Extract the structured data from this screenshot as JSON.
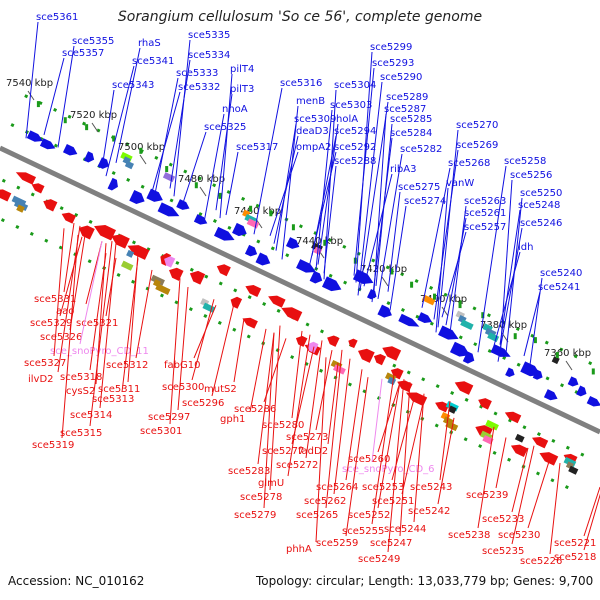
{
  "header": {
    "title": "Sorangium cellulosum 'So ce 56', complete genome"
  },
  "footer": {
    "accession": "Accession: NC_010162",
    "summary": "Topology: circular; Length: 13,033,779 bp; Genes: 9,700"
  },
  "colors": {
    "forward": "#1010e0",
    "reverse": "#e81010",
    "rna": "#ee88ee",
    "axis": "#808080",
    "dots": "#1a9a1a"
  },
  "ticks": [
    "7540 kbp",
    "7520 kbp",
    "7500 kbp",
    "7480 kbp",
    "7460 kbp",
    "7440 kbp",
    "7420 kbp",
    "7400 kbp",
    "7380 kbp",
    "7360 kbp"
  ],
  "top_labels": [
    "sce5361",
    "sce5355",
    "sce5357",
    "rhaS",
    "sce5341",
    "sce5343",
    "sce5335",
    "sce5334",
    "sce5333",
    "sce5332",
    "pilT4",
    "pilT3",
    "nhoA",
    "sce5325",
    "sce5316",
    "sce5317",
    "menB",
    "sce5309",
    "deaD3",
    "ompA2",
    "sce5304",
    "sce5303",
    "holA",
    "sce5294",
    "sce5292",
    "sce5288",
    "sce5299",
    "sce5293",
    "sce5290",
    "sce5289",
    "sce5287",
    "sce5285",
    "sce5284",
    "sce5282",
    "ribA3",
    "sce5275",
    "sce5274",
    "sce5270",
    "sce5269",
    "sce5268",
    "vanW",
    "sce5263",
    "sce5261",
    "sce5257",
    "sce5258",
    "sce5256",
    "sce5250",
    "sce5248",
    "sce5246",
    "ldh",
    "sce5240",
    "sce5241"
  ],
  "bottom_labels": [
    "sce5331",
    "aao",
    "sce5329",
    "sce5321",
    "sce5326",
    "sce_snoPyro_CD_11",
    "sce5327",
    "sce5318",
    "ilvD2",
    "cysS2",
    "sce5312",
    "fabG10",
    "sce5311",
    "sce5313",
    "sce5300",
    "mutS2",
    "sce5314",
    "sce5296",
    "sce5297",
    "gph1",
    "sce5315",
    "sce5301",
    "sce5319",
    "sce5286",
    "sce5280",
    "sce5273",
    "sce5277",
    "fadD2",
    "sce5272",
    "sce5260",
    "sce_snoPyro_CD_6",
    "sce5283",
    "glmU",
    "sce5278",
    "sce5264",
    "sce5253",
    "sce5243",
    "sce5262",
    "sce5251",
    "sce5279",
    "sce5265",
    "sce5252",
    "sce5239",
    "sce5242",
    "sce5255",
    "sce5244",
    "sce5233",
    "sce5259",
    "sce5247",
    "sce5238",
    "sce5230",
    "phhA",
    "sce5249",
    "sce5235",
    "sce5226",
    "sce5221",
    "sce5218"
  ]
}
